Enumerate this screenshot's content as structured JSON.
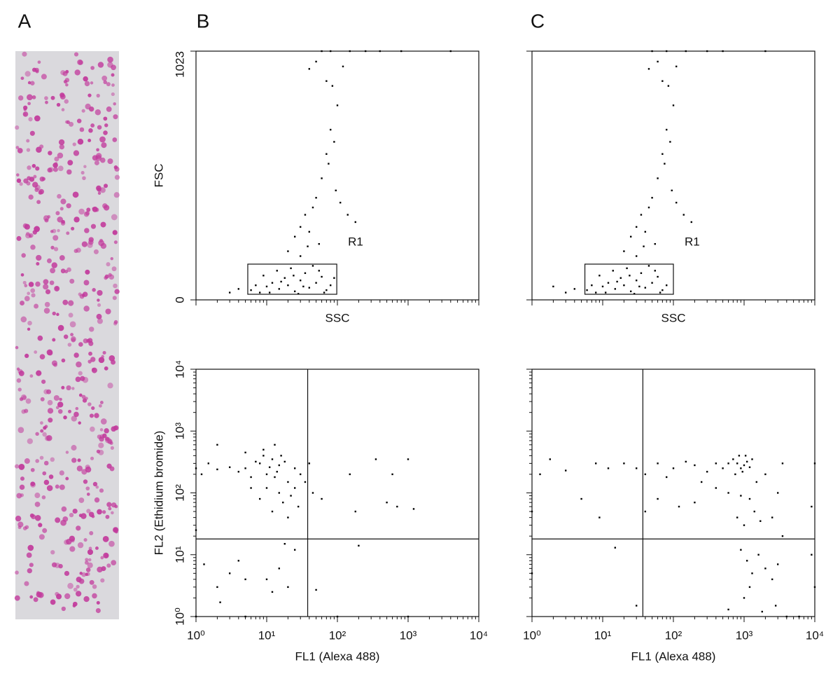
{
  "panel_labels": [
    "A",
    "B",
    "C"
  ],
  "chart_data": [
    {
      "type": "scatter",
      "x_label": "SSC",
      "y_label": "FSC",
      "x_log": true,
      "y_log": false,
      "xlim": [
        1,
        10000
      ],
      "ylim": [
        0,
        1023
      ],
      "xticks": [
        1,
        10,
        100,
        1000,
        10000
      ],
      "yticks": [
        0,
        1023
      ],
      "show_x_tick_labels": false,
      "show_y_tick_labels": true,
      "color": "#000000",
      "gate": {
        "label": "R1",
        "x": [
          5.4,
          98
        ],
        "y": [
          23,
          147
        ]
      },
      "x": [
        6,
        8,
        10,
        12,
        15,
        18,
        20,
        25,
        30,
        35,
        40,
        50,
        60,
        70,
        80,
        9,
        14,
        22,
        28,
        45,
        7,
        11,
        16,
        24,
        33,
        55,
        65,
        4,
        3,
        90,
        20,
        25,
        30,
        35,
        40,
        50,
        45,
        60,
        70,
        55,
        80,
        90,
        75,
        100,
        85,
        95,
        110,
        140,
        180,
        30,
        38,
        40,
        50,
        70,
        120,
        60,
        80,
        150,
        250,
        400,
        800,
        4000
      ],
      "values": [
        40,
        30,
        55,
        70,
        45,
        90,
        60,
        35,
        80,
        110,
        50,
        70,
        95,
        40,
        60,
        100,
        120,
        130,
        25,
        140,
        60,
        30,
        75,
        100,
        55,
        120,
        30,
        45,
        30,
        90,
        200,
        260,
        300,
        350,
        280,
        420,
        380,
        500,
        600,
        230,
        700,
        650,
        560,
        800,
        880,
        450,
        400,
        350,
        320,
        180,
        220,
        950,
        980,
        900,
        960,
        1023,
        1023,
        1023,
        1023,
        1023,
        1023,
        1023
      ]
    },
    {
      "type": "scatter",
      "x_label": "SSC",
      "x_log": true,
      "y_log": false,
      "xlim": [
        1,
        10000
      ],
      "ylim": [
        0,
        1023
      ],
      "xticks": [
        1,
        10,
        100,
        1000,
        10000
      ],
      "yticks": [
        0,
        1023
      ],
      "show_x_tick_labels": false,
      "show_y_tick_labels": false,
      "color": "#000000",
      "gate": {
        "label": "R1",
        "x": [
          5.6,
          100
        ],
        "y": [
          23,
          147
        ]
      },
      "x": [
        6,
        8,
        10,
        12,
        15,
        18,
        20,
        25,
        30,
        35,
        40,
        50,
        60,
        70,
        80,
        9,
        14,
        22,
        28,
        45,
        7,
        11,
        16,
        24,
        33,
        55,
        65,
        4,
        3,
        2,
        20,
        25,
        30,
        35,
        40,
        50,
        45,
        60,
        70,
        55,
        80,
        90,
        75,
        100,
        85,
        95,
        110,
        140,
        180,
        30,
        38,
        45,
        60,
        70,
        110,
        50,
        80,
        150,
        300,
        500,
        2000
      ],
      "values": [
        40,
        30,
        55,
        70,
        45,
        90,
        60,
        35,
        80,
        110,
        50,
        70,
        95,
        40,
        60,
        100,
        120,
        130,
        25,
        140,
        60,
        30,
        75,
        100,
        55,
        120,
        30,
        45,
        30,
        55,
        200,
        260,
        300,
        350,
        280,
        420,
        380,
        500,
        600,
        230,
        700,
        650,
        560,
        800,
        880,
        450,
        400,
        350,
        320,
        180,
        220,
        950,
        980,
        900,
        960,
        1023,
        1023,
        1023,
        1023,
        1023,
        1023
      ]
    },
    {
      "type": "scatter",
      "x_label": "FL1 (Alexa 488)",
      "y_label": "FL2 (Ethidium bromide)",
      "x_log": true,
      "y_log": true,
      "xlim": [
        1,
        10000
      ],
      "ylim": [
        1,
        10000
      ],
      "xticks": [
        {
          "value": 1,
          "label": "10⁰"
        },
        {
          "value": 10,
          "label": "10¹"
        },
        {
          "value": 100,
          "label": "10²"
        },
        {
          "value": 1000,
          "label": "10³"
        },
        {
          "value": 10000,
          "label": "10⁴"
        }
      ],
      "yticks": [
        {
          "value": 1,
          "label": "10⁰"
        },
        {
          "value": 10,
          "label": "10¹"
        },
        {
          "value": 100,
          "label": "10²"
        },
        {
          "value": 1000,
          "label": "10³"
        },
        {
          "value": 10000,
          "label": "10⁴"
        }
      ],
      "show_x_tick_labels": true,
      "show_y_tick_labels": true,
      "color": "#000000",
      "quadrant": {
        "x": 38,
        "y": 18
      },
      "x": [
        5,
        8,
        10,
        12,
        15,
        6,
        9,
        11,
        14,
        18,
        20,
        25,
        7,
        13,
        16,
        4,
        3,
        2,
        1.5,
        1.2,
        30,
        22,
        17,
        12,
        10,
        8,
        25,
        28,
        35,
        6,
        15,
        20,
        40,
        45,
        9,
        13,
        5,
        2,
        150,
        350,
        600,
        1000,
        500,
        700,
        1200,
        180,
        60,
        2,
        3,
        5,
        4,
        10,
        12,
        15,
        20,
        18,
        25,
        50,
        200,
        1.3,
        2.2,
        1,
        1,
        1,
        5,
        100,
        1000
      ],
      "values": [
        250,
        300,
        200,
        350,
        280,
        180,
        400,
        260,
        220,
        320,
        150,
        250,
        320,
        180,
        400,
        220,
        260,
        240,
        300,
        200,
        200,
        90,
        70,
        50,
        120,
        80,
        120,
        60,
        150,
        120,
        100,
        40,
        300,
        100,
        500,
        600,
        450,
        600,
        200,
        350,
        200,
        350,
        70,
        60,
        55,
        50,
        80,
        3,
        5,
        4,
        8,
        4,
        2.5,
        6,
        3,
        15,
        12,
        2.7,
        14,
        7,
        1.7,
        25,
        250,
        1,
        1,
        1,
        1
      ]
    },
    {
      "type": "scatter",
      "x_label": "FL1 (Alexa 488)",
      "x_log": true,
      "y_log": true,
      "xlim": [
        1,
        10000
      ],
      "ylim": [
        1,
        10000
      ],
      "xticks": [
        {
          "value": 1,
          "label": "10⁰"
        },
        {
          "value": 10,
          "label": "10¹"
        },
        {
          "value": 100,
          "label": "10²"
        },
        {
          "value": 1000,
          "label": "10³"
        },
        {
          "value": 10000,
          "label": "10⁴"
        }
      ],
      "yticks": [
        1,
        10,
        100,
        1000,
        10000
      ],
      "show_x_tick_labels": true,
      "show_y_tick_labels": false,
      "color": "#000000",
      "quadrant": {
        "x": 37,
        "y": 18
      },
      "x": [
        800,
        900,
        1000,
        1100,
        700,
        1200,
        950,
        850,
        600,
        1300,
        750,
        1050,
        500,
        400,
        300,
        200,
        150,
        100,
        80,
        60,
        40,
        30,
        20,
        12,
        8,
        3,
        1.8,
        1.3,
        250,
        400,
        600,
        900,
        1500,
        2000,
        1200,
        1400,
        800,
        1000,
        1700,
        2500,
        3000,
        3500,
        60,
        120,
        200,
        40,
        9,
        5,
        900,
        1100,
        1300,
        1600,
        2000,
        2500,
        3000,
        1200,
        1000,
        2800,
        1800,
        600,
        3500,
        9000,
        9000,
        10000,
        10000,
        4000,
        6000,
        30,
        1,
        1,
        15
      ],
      "values": [
        300,
        250,
        280,
        320,
        350,
        260,
        220,
        400,
        300,
        350,
        200,
        400,
        250,
        300,
        220,
        280,
        320,
        250,
        180,
        300,
        200,
        250,
        300,
        250,
        300,
        230,
        350,
        200,
        150,
        120,
        100,
        90,
        150,
        200,
        80,
        50,
        40,
        30,
        35,
        40,
        100,
        300,
        80,
        60,
        70,
        50,
        40,
        80,
        12,
        8,
        5,
        10,
        6,
        4,
        7,
        3,
        2,
        1.5,
        1.2,
        1.3,
        20,
        60,
        10,
        300,
        3,
        1,
        1,
        1.5,
        50,
        5,
        13
      ]
    }
  ]
}
